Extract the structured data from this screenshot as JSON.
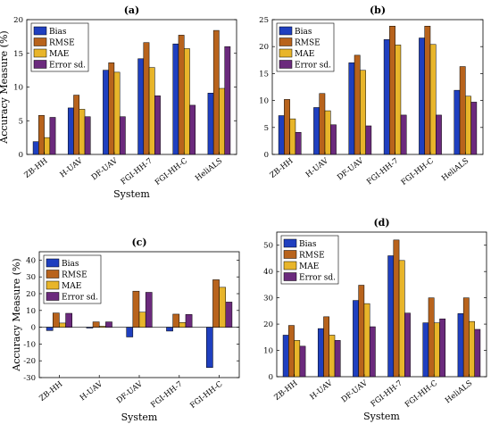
{
  "colors": {
    "Bias": "#1f3fbf",
    "RMSE": "#b8631c",
    "MAE": "#e8b52a",
    "Error sd.": "#6b2a7d"
  },
  "chart_data": [
    {
      "type": "bar",
      "panel": "(a)",
      "categories": [
        "ZB-HH",
        "H-UAV",
        "DF-UAV",
        "FGI-HH-7",
        "FGI-HH-C",
        "HeliALS"
      ],
      "series": [
        {
          "name": "Bias",
          "values": [
            1.9,
            6.9,
            12.5,
            14.2,
            16.4,
            9.1
          ]
        },
        {
          "name": "RMSE",
          "values": [
            5.8,
            8.8,
            13.6,
            16.6,
            17.7,
            18.4
          ]
        },
        {
          "name": "MAE",
          "values": [
            2.5,
            6.7,
            12.2,
            12.9,
            15.7,
            9.8
          ]
        },
        {
          "name": "Error sd.",
          "values": [
            5.5,
            5.6,
            5.6,
            8.7,
            7.3,
            16.0
          ]
        }
      ],
      "xlabel": "System",
      "ylabel": "Accuracy Measure (%)",
      "ylim": [
        0,
        20
      ],
      "yticks": [
        0,
        5,
        10,
        15,
        20
      ],
      "legend": "top-left"
    },
    {
      "type": "bar",
      "panel": "(b)",
      "categories": [
        "ZB-HH",
        "H-UAV",
        "DF-UAV",
        "FGI-HH-7",
        "FGI-HH-C",
        "HeliALS"
      ],
      "series": [
        {
          "name": "Bias",
          "values": [
            7.2,
            8.7,
            17.0,
            21.3,
            21.6,
            11.9
          ]
        },
        {
          "name": "RMSE",
          "values": [
            10.2,
            11.3,
            18.4,
            23.8,
            23.8,
            16.3
          ]
        },
        {
          "name": "MAE",
          "values": [
            6.6,
            8.1,
            15.6,
            20.3,
            20.4,
            10.8
          ]
        },
        {
          "name": "Error sd.",
          "values": [
            4.1,
            5.5,
            5.3,
            7.3,
            7.3,
            9.7
          ]
        }
      ],
      "xlabel": "",
      "ylabel": "",
      "ylim": [
        0,
        25
      ],
      "yticks": [
        0,
        5,
        10,
        15,
        20,
        25
      ],
      "legend": "top-left"
    },
    {
      "type": "bar",
      "panel": "(c)",
      "categories": [
        "ZB-HH",
        "H-UAV",
        "DF-UAV",
        "FGI-HH-7",
        "FGI-HH-C"
      ],
      "series": [
        {
          "name": "Bias",
          "values": [
            -2.0,
            -0.5,
            -5.8,
            -2.3,
            -24.0
          ]
        },
        {
          "name": "RMSE",
          "values": [
            8.5,
            3.2,
            21.5,
            7.8,
            28.3
          ]
        },
        {
          "name": "MAE",
          "values": [
            2.5,
            0.6,
            9.0,
            2.8,
            23.8
          ]
        },
        {
          "name": "Error sd.",
          "values": [
            8.3,
            3.2,
            20.8,
            7.6,
            15.0
          ]
        }
      ],
      "xlabel": "System",
      "ylabel": "Accuracy Measure (%)",
      "ylim": [
        -30,
        45
      ],
      "yticks": [
        -30,
        -20,
        -10,
        0,
        10,
        20,
        30,
        40
      ],
      "legend": "top-left"
    },
    {
      "type": "bar",
      "panel": "(d)",
      "categories": [
        "ZB-HH",
        "H-UAV",
        "DF-UAV",
        "FGI-HH-7",
        "FGI-HH-C",
        "HeliALS"
      ],
      "series": [
        {
          "name": "Bias",
          "values": [
            15.8,
            18.3,
            29.0,
            46.0,
            20.5,
            24.0
          ]
        },
        {
          "name": "RMSE",
          "values": [
            19.5,
            22.8,
            34.8,
            52.0,
            30.0,
            30.0
          ]
        },
        {
          "name": "MAE",
          "values": [
            13.8,
            15.8,
            27.8,
            44.2,
            20.5,
            21.0
          ]
        },
        {
          "name": "Error sd.",
          "values": [
            11.6,
            13.8,
            19.0,
            24.2,
            22.0,
            18.0
          ]
        }
      ],
      "xlabel": "System",
      "ylabel": "",
      "ylim": [
        0,
        55
      ],
      "yticks": [
        0,
        10,
        20,
        30,
        40,
        50
      ],
      "legend": "top-left"
    }
  ]
}
